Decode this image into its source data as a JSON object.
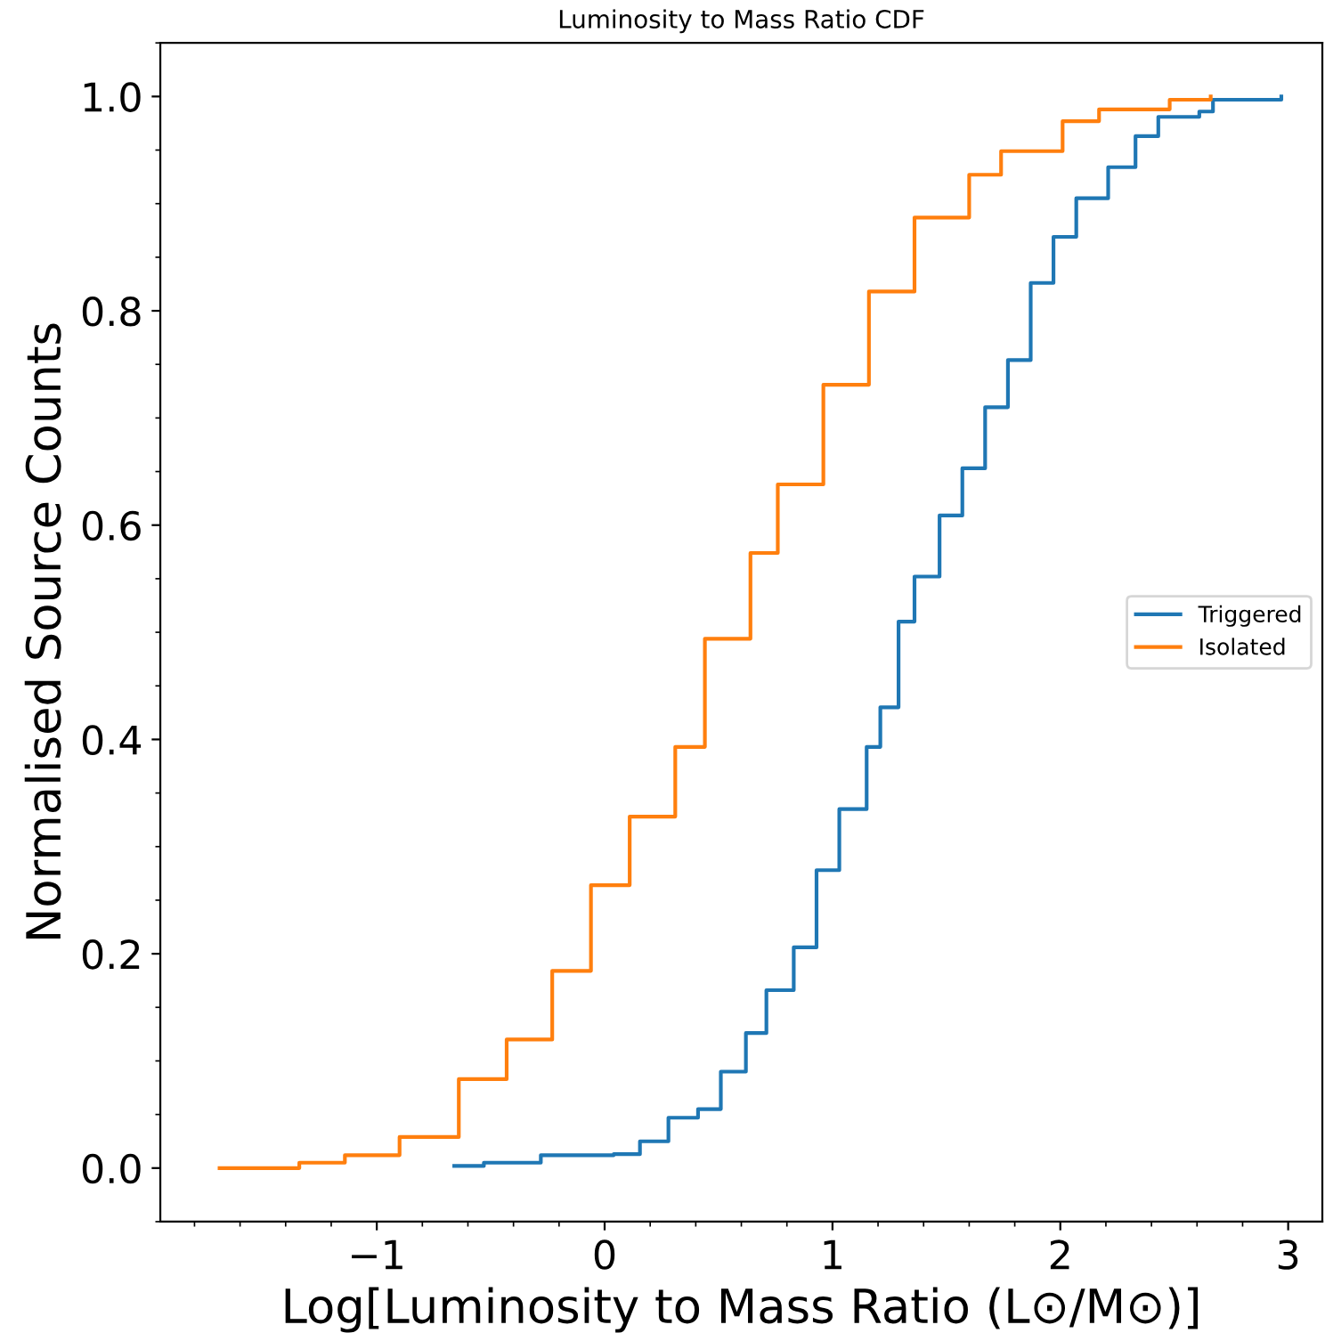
{
  "chart_data": {
    "type": "step",
    "title": "Luminosity to Mass Ratio CDF",
    "xlabel": "Log[Luminosity to Mass Ratio (L⊙/M⊙)]",
    "ylabel": "Normalised Source Counts",
    "series": [
      {
        "name": "Triggered",
        "color": "#1f77b4",
        "x": [
          -0.66,
          -0.53,
          -0.28,
          0.04,
          0.155,
          0.28,
          0.41,
          0.51,
          0.62,
          0.71,
          0.83,
          0.93,
          1.03,
          1.15,
          1.21,
          1.29,
          1.36,
          1.47,
          1.57,
          1.67,
          1.77,
          1.87,
          1.97,
          2.07,
          2.21,
          2.33,
          2.43,
          2.61,
          2.67,
          2.97
        ],
        "values": [
          0.002,
          0.005,
          0.012,
          0.013,
          0.025,
          0.047,
          0.055,
          0.09,
          0.126,
          0.166,
          0.206,
          0.278,
          0.335,
          0.393,
          0.43,
          0.51,
          0.552,
          0.609,
          0.653,
          0.71,
          0.754,
          0.826,
          0.869,
          0.905,
          0.934,
          0.963,
          0.981,
          0.986,
          0.997,
          1.0
        ]
      },
      {
        "name": "Isolated",
        "color": "#ff7f0e",
        "x": [
          -1.69,
          -1.34,
          -1.14,
          -0.9,
          -0.64,
          -0.43,
          -0.23,
          -0.06,
          0.11,
          0.31,
          0.44,
          0.64,
          0.76,
          0.96,
          1.16,
          1.36,
          1.6,
          1.74,
          2.01,
          2.17,
          2.48,
          2.66
        ],
        "values": [
          0.0,
          0.005,
          0.012,
          0.029,
          0.083,
          0.12,
          0.184,
          0.264,
          0.328,
          0.393,
          0.494,
          0.574,
          0.638,
          0.731,
          0.818,
          0.887,
          0.927,
          0.949,
          0.977,
          0.988,
          0.997,
          1.0
        ]
      }
    ],
    "xlim": [
      -1.95,
      3.15
    ],
    "ylim": [
      -0.05,
      1.05
    ],
    "xticks": [
      {
        "value": -1,
        "label": "−1"
      },
      0,
      1,
      2,
      3
    ],
    "yticks": [
      {
        "value": 0,
        "label": "0.0"
      },
      0.2,
      0.4,
      0.6,
      0.8,
      {
        "value": 1,
        "label": "1.0"
      }
    ],
    "legend": "center right",
    "grid": false
  }
}
